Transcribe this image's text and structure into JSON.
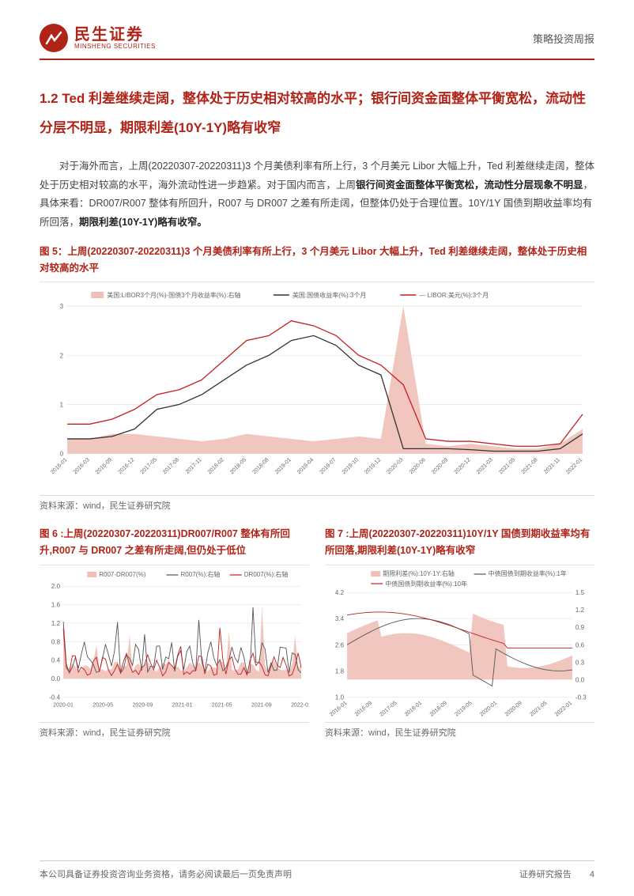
{
  "header": {
    "logo_cn": "民生证券",
    "logo_en": "MINSHENG SECURITIES",
    "doc_type": "策略投资周报"
  },
  "section": {
    "title": "1.2 Ted 利差继续走阔，整体处于历史相对较高的水平；银行间资金面整体平衡宽松，流动性分层不明显，期限利差(10Y-1Y)略有收窄"
  },
  "paragraph": {
    "p1a": "对于海外而言，上周(20220307-20220311)3 个月美债利率有所上行，3 个月美元 Libor 大幅上升，Ted 利差继续走阔，整体处于历史相对较高的水平，海外流动性进一步趋紧。对于国内而言，上周",
    "p1b": "银行间资金面整体平衡宽松，流动性分层现象不明显",
    "p1c": "，具体来看：DR007/R007 整体有所回升，R007 与 DR007 之差有所走阔，但整体仍处于合理位置。10Y/1Y 国债到期收益率均有所回落，",
    "p1d": "期限利差(10Y-1Y)略有收窄。"
  },
  "fig5": {
    "title": "图 5：上周(20220307-20220311)3 个月美债利率有所上行，3 个月美元 Libor 大幅上升，Ted 利差继续走阔，整体处于历史相对较高的水平",
    "type": "line+area",
    "legend": [
      "美国:LIBOR3个月(%)-国债3个月收益率(%):右轴",
      "美国:国债收益率(%):3个月",
      "— LIBOR:美元(%):3个月"
    ],
    "colors": {
      "area": "#f0c0b8",
      "line_black": "#333333",
      "line_red": "#c41e1e",
      "grid": "#dddddd",
      "bg": "#ffffff"
    },
    "y_left": {
      "min": 0,
      "max": 3,
      "ticks": [
        0,
        1,
        2,
        3
      ]
    },
    "x_labels": [
      "2016-01",
      "2016-03",
      "2016-09",
      "2016-12",
      "2017-05",
      "2017-08",
      "2017-11",
      "2018-02",
      "2018-05",
      "2018-08",
      "2019-01",
      "2019-04",
      "2019-07",
      "2019-10",
      "2019-12",
      "2020-03",
      "2020-06",
      "2020-09",
      "2020-12",
      "2021-03",
      "2021-05",
      "2021-08",
      "2021-11",
      "2022-01"
    ],
    "source": "资料来源：wind，民生证券研究院",
    "series_area": [
      0.3,
      0.3,
      0.4,
      0.4,
      0.35,
      0.3,
      0.25,
      0.3,
      0.4,
      0.35,
      0.3,
      0.25,
      0.3,
      0.35,
      0.3,
      3.0,
      0.2,
      0.15,
      0.2,
      0.15,
      0.1,
      0.1,
      0.2,
      0.5
    ],
    "series_black": [
      0.3,
      0.3,
      0.35,
      0.5,
      0.9,
      1.0,
      1.2,
      1.5,
      1.8,
      2.0,
      2.3,
      2.4,
      2.2,
      1.8,
      1.6,
      0.1,
      0.1,
      0.1,
      0.08,
      0.05,
      0.05,
      0.05,
      0.1,
      0.4
    ],
    "series_red": [
      0.6,
      0.6,
      0.7,
      0.9,
      1.2,
      1.3,
      1.5,
      1.9,
      2.3,
      2.4,
      2.7,
      2.6,
      2.4,
      2.0,
      1.8,
      1.4,
      0.3,
      0.25,
      0.25,
      0.2,
      0.15,
      0.15,
      0.2,
      0.8
    ]
  },
  "fig6": {
    "title": "图 6 :上周(20220307-20220311)DR007/R007 整体有所回升,R007 与 DR007 之差有所走阔,但仍处于低位",
    "type": "line+area",
    "legend": [
      "R007-DR007(%)",
      "R007(%):右轴",
      "DR007(%):右轴"
    ],
    "colors": {
      "area": "#f0c0b8",
      "line_gray": "#555555",
      "line_red": "#c41e1e",
      "grid": "#dddddd"
    },
    "y_left": {
      "min": -0.4,
      "max": 2.0,
      "ticks": [
        -0.4,
        0.0,
        0.4,
        0.8,
        1.2,
        1.6,
        2.0
      ]
    },
    "x_labels": [
      "2020-01",
      "2020-05",
      "2020-09",
      "2021-01",
      "2021-05",
      "2021-09",
      "2022-01"
    ],
    "source": "资料来源：wind，民生证券研究院"
  },
  "fig7": {
    "title": "图 7 :上周(20220307-20220311)10Y/1Y 国债到期收益率均有所回落,期限利差(10Y-1Y)略有收窄",
    "type": "line+area",
    "legend": [
      "期限利差(%):10Y-1Y:右轴",
      "中债国债到期收益率(%):1年",
      "中债国债到期收益率(%):10年"
    ],
    "colors": {
      "area": "#f0c0b8",
      "line_gray": "#555555",
      "line_red": "#c41e1e",
      "grid": "#dddddd"
    },
    "y_left": {
      "min": 1.0,
      "max": 4.2,
      "ticks": [
        1.0,
        1.8,
        2.6,
        3.4,
        4.2
      ]
    },
    "y_right": {
      "min": -0.3,
      "max": 1.5,
      "ticks": [
        -0.3,
        0.0,
        0.3,
        0.6,
        0.9,
        1.2,
        1.5
      ]
    },
    "x_labels": [
      "2016-01",
      "2016-09",
      "2017-05",
      "2018-01",
      "2018-09",
      "2019-05",
      "2020-01",
      "2020-09",
      "2021-05",
      "2022-01"
    ],
    "source": "资料来源：wind，民生证券研究院"
  },
  "footer": {
    "left": "本公司具备证券投资咨询业务资格，请务必阅读最后一页免责声明",
    "right": "证券研究报告",
    "page": "4"
  }
}
